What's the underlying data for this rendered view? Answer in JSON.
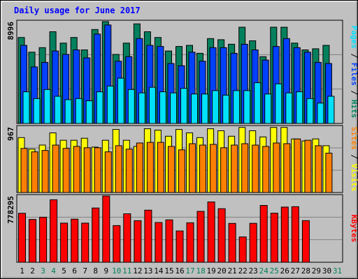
{
  "title": "Daily usage for June 2017",
  "colors": {
    "background": "#c0c0c0",
    "frame_light": "#ffffff",
    "frame_dark": "#808080",
    "title": "#0000ff",
    "hits": "#00805c",
    "files": "#0040ff",
    "pages": "#00e0ff",
    "visits": "#ffff00",
    "sites": "#ff8000",
    "kbytes": "#ff0000",
    "weekend_day": "#00805c",
    "weekday": "#000000",
    "bar_outline": "#000000",
    "grid": "#808080"
  },
  "chart_data": {
    "type": "bar",
    "title": "Daily usage for June 2017",
    "x": [
      "1",
      "2",
      "3",
      "4",
      "5",
      "6",
      "7",
      "8",
      "9",
      "10",
      "11",
      "12",
      "13",
      "14",
      "15",
      "16",
      "17",
      "18",
      "19",
      "20",
      "21",
      "22",
      "23",
      "24",
      "25",
      "26",
      "27",
      "28",
      "29",
      "30",
      "31"
    ],
    "weekend_days": [
      3,
      4,
      10,
      11,
      17,
      18,
      24,
      25,
      31
    ],
    "panels": [
      {
        "id": "hits-files-pages",
        "max_label": "8996",
        "ymax": 8996,
        "series": [
          {
            "name": "Hits",
            "color_key": "hits",
            "values": [
              7600,
              6300,
              6700,
              8100,
              7100,
              7600,
              6500,
              8300,
              8996,
              6100,
              7100,
              8800,
              8100,
              7600,
              6400,
              6800,
              6900,
              6200,
              7500,
              7400,
              7000,
              8500,
              7300,
              5900,
              8500,
              8500,
              7100,
              6500,
              6600,
              6900,
              null
            ]
          },
          {
            "name": "Files",
            "color_key": "files",
            "values": [
              6900,
              5000,
              5400,
              6400,
              6100,
              6500,
              5800,
              7900,
              8700,
              5500,
              5900,
              7500,
              6900,
              6800,
              5300,
              5100,
              6300,
              5500,
              6700,
              6700,
              6200,
              7000,
              6500,
              5600,
              6800,
              7500,
              6700,
              6300,
              5400,
              5300,
              null
            ]
          },
          {
            "name": "Pages",
            "color_key": "pages",
            "values": [
              2800,
              2200,
              3000,
              2400,
              2100,
              2200,
              2000,
              2800,
              3300,
              4000,
              3000,
              2700,
              3200,
              2800,
              2700,
              3100,
              2600,
              2600,
              2900,
              2500,
              2900,
              2900,
              3600,
              2600,
              3500,
              2700,
              2800,
              2200,
              1800,
              2400,
              null
            ]
          }
        ],
        "axis_label_parts": [
          "Pages",
          "Files",
          "Hits"
        ]
      },
      {
        "id": "visits-sites",
        "max_label": "967",
        "ymax": 967,
        "series": [
          {
            "name": "Visits",
            "color_key": "visits",
            "values": [
              810,
              640,
              700,
              880,
              770,
              770,
              800,
              670,
              770,
              930,
              770,
              680,
              940,
              920,
              830,
              930,
              880,
              810,
              940,
              910,
              830,
              960,
              910,
              820,
              960,
              960,
              790,
              760,
              790,
              690,
              null
            ]
          },
          {
            "name": "Sites",
            "color_key": "sites",
            "values": [
              650,
              600,
              620,
              700,
              650,
              680,
              660,
              660,
              600,
              690,
              640,
              730,
              740,
              740,
              680,
              630,
              720,
              700,
              710,
              660,
              700,
              720,
              700,
              680,
              730,
              720,
              790,
              770,
              690,
              580,
              null
            ]
          }
        ],
        "axis_label_parts": [
          "Sites",
          "Visits"
        ]
      },
      {
        "id": "kbytes",
        "max_label": "778295",
        "ymax": 778295,
        "series": [
          {
            "name": "KBytes",
            "color_key": "kbytes",
            "values": [
              575000,
              503000,
              529000,
              734000,
              460000,
              506000,
              460000,
              637000,
              778295,
              431000,
              569000,
              488000,
              612000,
              467000,
              498000,
              368000,
              464000,
              598000,
              709000,
              629000,
              456000,
              297000,
              457000,
              668000,
              577000,
              648000,
              653000,
              489000,
              0,
              0,
              null
            ]
          }
        ],
        "axis_label_parts": [
          "KBytes"
        ]
      }
    ]
  }
}
